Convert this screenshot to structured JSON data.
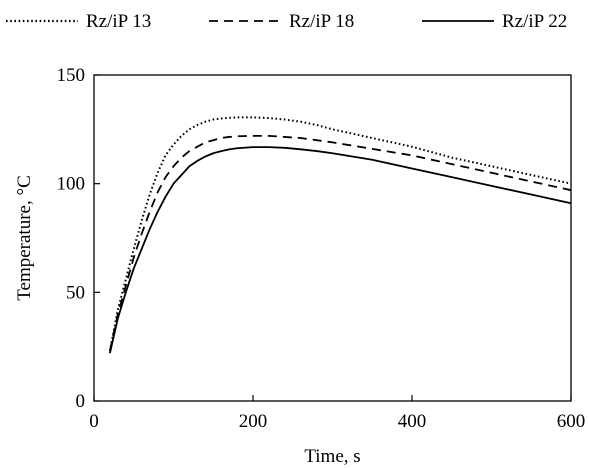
{
  "chart_data": {
    "type": "line",
    "title": "",
    "xlabel": "Time, s",
    "ylabel": "Temperature, °C",
    "xlim": [
      0,
      600
    ],
    "ylim": [
      0,
      150
    ],
    "xticks": [
      0,
      200,
      400,
      600
    ],
    "yticks": [
      0,
      50,
      100,
      150
    ],
    "grid": false,
    "legend": "top",
    "series": [
      {
        "name": "Rz/iP 13",
        "style": "dotted",
        "x": [
          20,
          30,
          40,
          50,
          60,
          70,
          80,
          90,
          100,
          110,
          120,
          130,
          140,
          150,
          160,
          170,
          180,
          200,
          220,
          240,
          260,
          280,
          300,
          350,
          400,
          450,
          500,
          550,
          600
        ],
        "y": [
          23,
          42,
          56,
          70,
          83,
          95,
          105,
          113,
          118,
          122,
          125,
          127,
          128.5,
          129.5,
          130,
          130.3,
          130.5,
          130.5,
          130.2,
          129.5,
          128.5,
          127,
          125,
          121,
          117,
          112,
          108,
          104,
          100
        ]
      },
      {
        "name": "Rz/iP 18",
        "style": "dashed",
        "x": [
          20,
          30,
          40,
          50,
          60,
          70,
          80,
          90,
          100,
          110,
          120,
          130,
          140,
          150,
          160,
          170,
          180,
          200,
          220,
          240,
          260,
          280,
          300,
          350,
          400,
          450,
          500,
          550,
          600
        ],
        "y": [
          23,
          40,
          53,
          66,
          77,
          87,
          96,
          103,
          108,
          112,
          115,
          117,
          119,
          120,
          121,
          121.5,
          121.8,
          122,
          122,
          121.5,
          121,
          120,
          119,
          116,
          113,
          109,
          105,
          101,
          97
        ]
      },
      {
        "name": "Rz/iP 22",
        "style": "solid",
        "x": [
          20,
          30,
          40,
          50,
          60,
          70,
          80,
          90,
          100,
          110,
          120,
          130,
          140,
          150,
          160,
          170,
          180,
          200,
          220,
          240,
          260,
          280,
          300,
          350,
          400,
          450,
          500,
          550,
          600
        ],
        "y": [
          22,
          38,
          50,
          61,
          70,
          79,
          87,
          94,
          100,
          104,
          108,
          110.5,
          112.5,
          114,
          115,
          115.8,
          116.3,
          116.8,
          116.8,
          116.5,
          115.8,
          115,
          114,
          111,
          107,
          103,
          99,
          95,
          91
        ]
      }
    ]
  }
}
